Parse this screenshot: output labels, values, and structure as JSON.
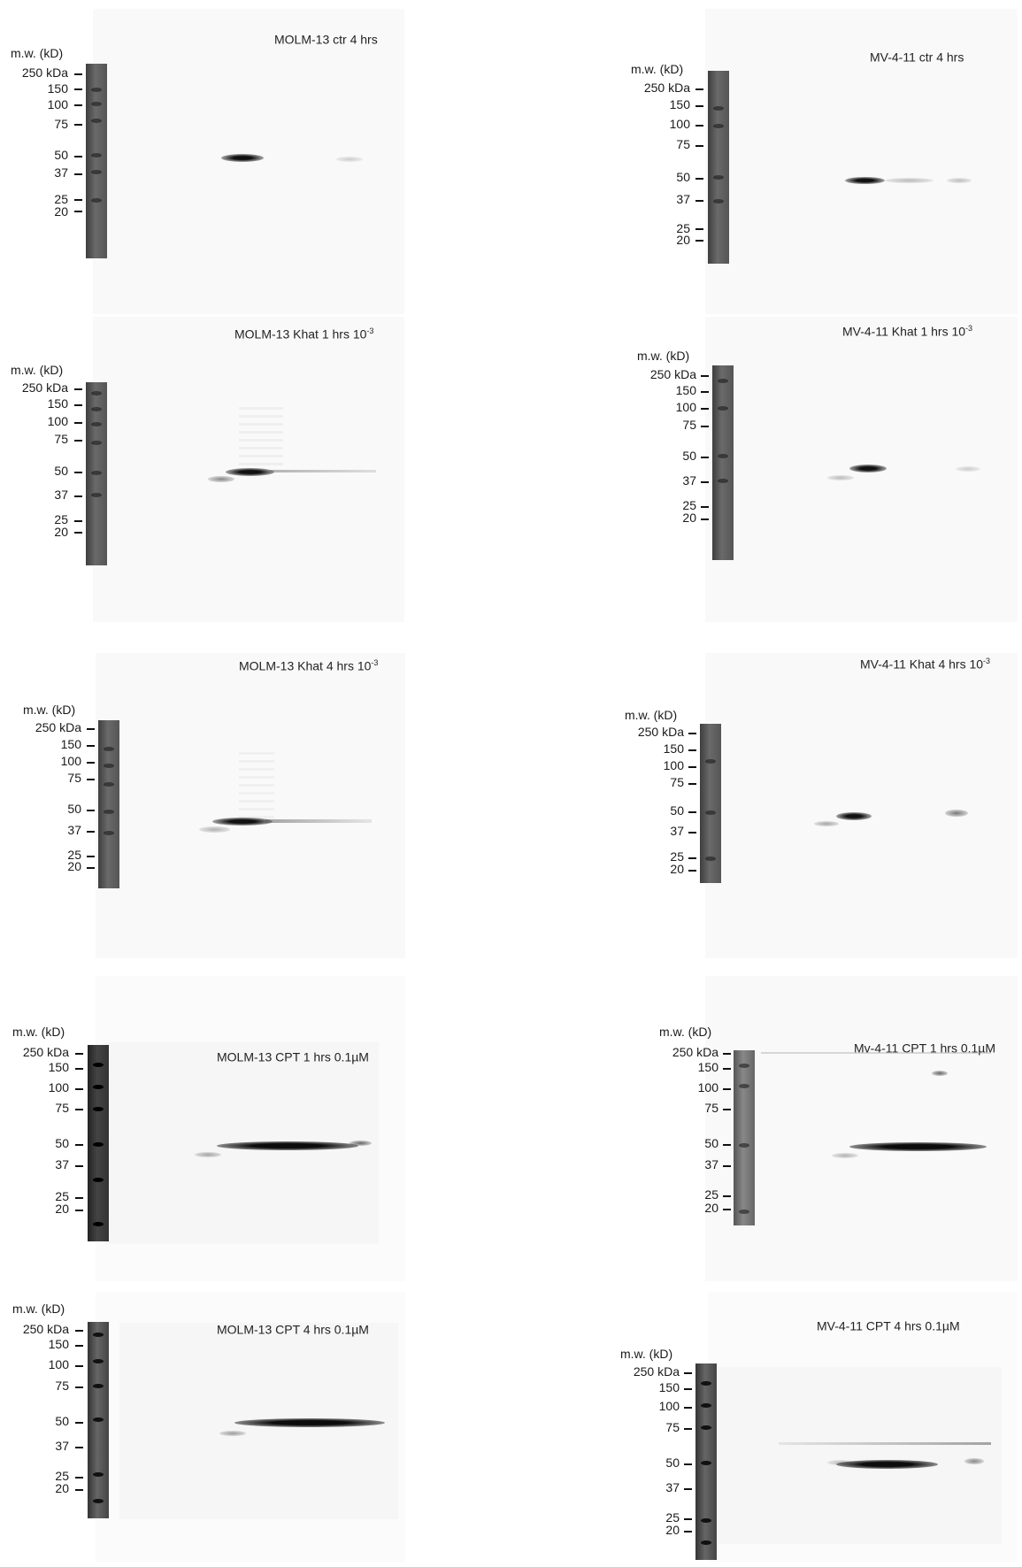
{
  "mw_header": "m.w. (kD)",
  "markers": [
    "250 kDa",
    "150",
    "100",
    "75",
    "50",
    "37",
    "25",
    "20"
  ],
  "panels": [
    {
      "id": "molm13-ctr-4h",
      "title": "MOLM-13 ctr 4 hrs",
      "sup": ""
    },
    {
      "id": "mv411-ctr-4h",
      "title": "MV-4-11 ctr 4 hrs",
      "sup": ""
    },
    {
      "id": "molm13-khat-1h",
      "title": "MOLM-13 Khat 1 hrs 10",
      "sup": "-3"
    },
    {
      "id": "mv411-khat-1h",
      "title": "MV-4-11 Khat 1 hrs 10",
      "sup": "-3"
    },
    {
      "id": "molm13-khat-4h",
      "title": "MOLM-13 Khat 4 hrs 10",
      "sup": "-3"
    },
    {
      "id": "mv411-khat-4h",
      "title": "MV-4-11 Khat 4 hrs 10",
      "sup": "-3"
    },
    {
      "id": "molm13-cpt-1h",
      "title": "MOLM-13 CPT  1 hrs 0.1µM",
      "sup": ""
    },
    {
      "id": "mv411-cpt-1h",
      "title": "Mv-4-11 CPT 1 hrs 0.1µM",
      "sup": ""
    },
    {
      "id": "molm13-cpt-4h",
      "title": "MOLM-13 CPT 4 hrs 0.1µM",
      "sup": ""
    },
    {
      "id": "mv411-cpt-4h",
      "title": "MV-4-11 CPT 4 hrs 0.1µM",
      "sup": ""
    }
  ]
}
